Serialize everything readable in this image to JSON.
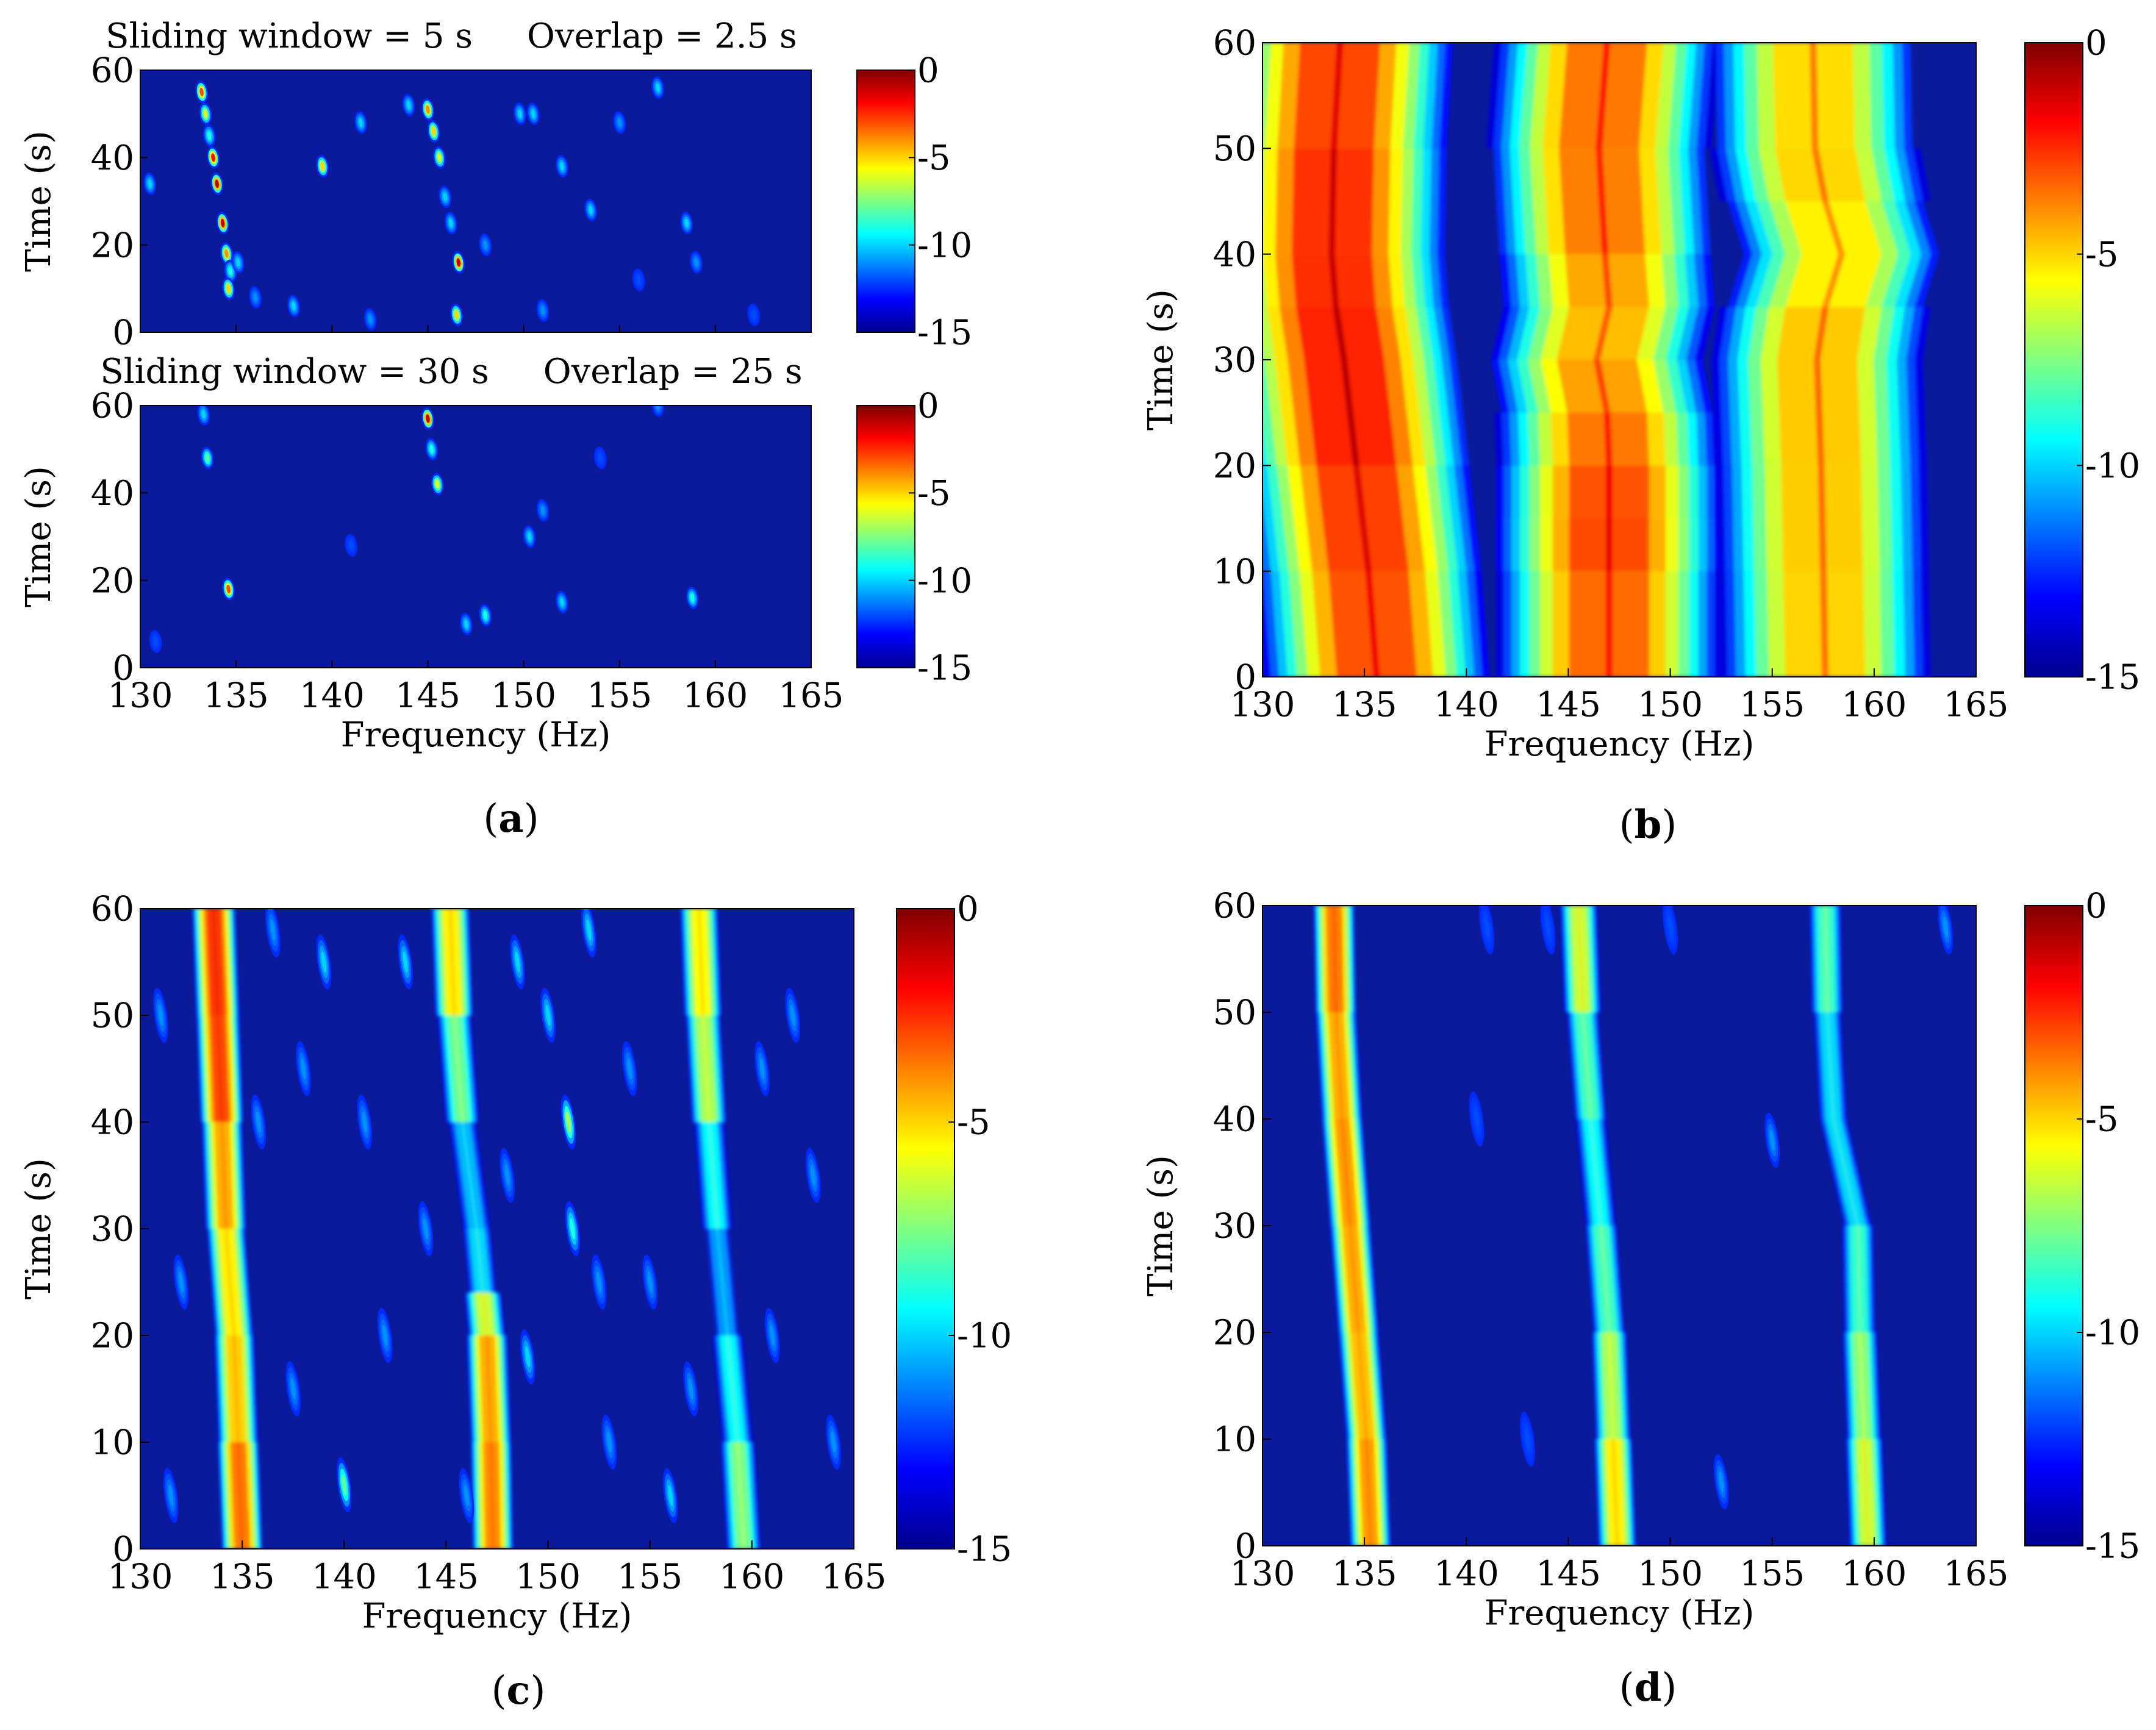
{
  "colorbar": {
    "stops": [
      "#00008f",
      "#0000ff",
      "#0080ff",
      "#00ffff",
      "#80ff80",
      "#ffff00",
      "#ff8000",
      "#ff0000",
      "#800000"
    ],
    "background": "#0a1a9a"
  },
  "panel_labels": [
    {
      "open": "(",
      "letter": "a",
      "close": ")"
    },
    {
      "open": "(",
      "letter": "b",
      "close": ")"
    },
    {
      "open": "(",
      "letter": "c",
      "close": ")"
    },
    {
      "open": "(",
      "letter": "d",
      "close": ")"
    }
  ],
  "chart_data": [
    {
      "id": "a-top",
      "type": "heatmap",
      "title": "Sliding window = 5 s     Overlap = 2.5 s",
      "xlabel": "",
      "ylabel": "Time (s)",
      "xlim": [
        130,
        165
      ],
      "ylim": [
        0,
        60
      ],
      "xticks": [],
      "yticks": [
        "0",
        "20",
        "40",
        "60"
      ],
      "clim": [
        -15,
        0
      ],
      "cticks": [
        "0",
        "-5",
        "-10",
        "-15"
      ],
      "ridges": [],
      "blobs": [
        [
          133.2,
          55,
          -3
        ],
        [
          133.4,
          50,
          -6
        ],
        [
          133.6,
          45,
          -9
        ],
        [
          133.8,
          40,
          -2
        ],
        [
          134.0,
          34,
          -1
        ],
        [
          134.3,
          25,
          -1
        ],
        [
          134.5,
          18,
          -4
        ],
        [
          134.7,
          14,
          -9
        ],
        [
          134.6,
          10,
          -5
        ],
        [
          135.1,
          16,
          -10
        ],
        [
          139.5,
          38,
          -5
        ],
        [
          141.5,
          48,
          -10
        ],
        [
          144.0,
          52,
          -10
        ],
        [
          145.0,
          51,
          -4
        ],
        [
          145.3,
          46,
          -5
        ],
        [
          145.6,
          40,
          -6
        ],
        [
          145.9,
          31,
          -10
        ],
        [
          146.2,
          25,
          -10
        ],
        [
          146.6,
          16,
          -1
        ],
        [
          146.5,
          4,
          -5
        ],
        [
          149.8,
          50,
          -10
        ],
        [
          150.5,
          50,
          -10
        ],
        [
          152.0,
          38,
          -10
        ],
        [
          153.5,
          28,
          -10
        ],
        [
          155.0,
          48,
          -11
        ],
        [
          157.0,
          56,
          -10
        ],
        [
          158.5,
          25,
          -10
        ],
        [
          159.0,
          16,
          -11
        ],
        [
          136.0,
          8,
          -11
        ],
        [
          138.0,
          6,
          -10
        ],
        [
          142.0,
          3,
          -11
        ],
        [
          151.0,
          5,
          -11
        ],
        [
          162.0,
          4,
          -12
        ],
        [
          130.5,
          34,
          -10
        ],
        [
          148.0,
          20,
          -11
        ],
        [
          156.0,
          12,
          -12
        ]
      ]
    },
    {
      "id": "a-bottom",
      "type": "heatmap",
      "title": "Sliding window = 30 s     Overlap = 25 s",
      "xlabel": "Frequency (Hz)",
      "ylabel": "Time (s)",
      "xlim": [
        130,
        165
      ],
      "ylim": [
        0,
        60
      ],
      "xticks": [
        "130",
        "135",
        "140",
        "145",
        "150",
        "155",
        "160",
        "165"
      ],
      "yticks": [
        "0",
        "20",
        "40",
        "60"
      ],
      "clim": [
        -15,
        0
      ],
      "cticks": [
        "0",
        "-5",
        "-10",
        "-15"
      ],
      "ridges": [],
      "blobs": [
        [
          133.3,
          58,
          -10
        ],
        [
          133.5,
          48,
          -8
        ],
        [
          134.6,
          18,
          -3
        ],
        [
          145.0,
          57,
          -1
        ],
        [
          145.2,
          50,
          -9
        ],
        [
          145.5,
          42,
          -6
        ],
        [
          147.0,
          10,
          -10
        ],
        [
          148.0,
          12,
          -9
        ],
        [
          150.3,
          30,
          -10
        ],
        [
          151.0,
          36,
          -11
        ],
        [
          152.0,
          15,
          -10
        ],
        [
          158.8,
          16,
          -9
        ],
        [
          157.0,
          60,
          -11
        ],
        [
          130.8,
          6,
          -12
        ],
        [
          141.0,
          28,
          -12
        ],
        [
          154.0,
          48,
          -12
        ]
      ]
    },
    {
      "id": "b",
      "type": "heatmap",
      "title": "",
      "xlabel": "Frequency (Hz)",
      "ylabel": "Time (s)",
      "xlim": [
        130,
        165
      ],
      "ylim": [
        0,
        60
      ],
      "xticks": [
        "130",
        "135",
        "140",
        "145",
        "150",
        "155",
        "160",
        "165"
      ],
      "yticks": [
        "0",
        "10",
        "20",
        "30",
        "40",
        "50",
        "60"
      ],
      "clim": [
        -15,
        0
      ],
      "cticks": [
        "0",
        "-5",
        "-10",
        "-15"
      ],
      "ridges": [
        {
          "sigma": 1.15,
          "pts": [
            [
              0,
              135.6,
              -1.8
            ],
            [
              10,
              135.2,
              -1.5
            ],
            [
              20,
              134.6,
              -1.2
            ],
            [
              30,
              134.0,
              -0.6
            ],
            [
              35,
              133.6,
              -1.2
            ],
            [
              40,
              133.4,
              -1.0
            ],
            [
              50,
              133.5,
              -1.3
            ],
            [
              60,
              133.8,
              -1.6
            ]
          ]
        },
        {
          "sigma": 1.15,
          "pts": [
            [
              0,
              147.0,
              -2.2
            ],
            [
              10,
              147.0,
              -1.8
            ],
            [
              15,
              147.0,
              -1.3
            ],
            [
              20,
              147.0,
              -2.0
            ],
            [
              25,
              146.9,
              -2.4
            ],
            [
              30,
              146.4,
              -3.2
            ],
            [
              35,
              147.0,
              -3.2
            ],
            [
              40,
              146.8,
              -2.6
            ],
            [
              50,
              146.5,
              -2.0
            ],
            [
              60,
              146.9,
              -2.4
            ]
          ]
        },
        {
          "sigma": 1.15,
          "pts": [
            [
              0,
              157.6,
              -3.8
            ],
            [
              10,
              157.5,
              -3.3
            ],
            [
              20,
              157.4,
              -3.6
            ],
            [
              30,
              157.2,
              -3.2
            ],
            [
              35,
              157.6,
              -3.6
            ],
            [
              40,
              158.4,
              -4.4
            ],
            [
              45,
              157.6,
              -3.6
            ],
            [
              50,
              157.1,
              -3.6
            ],
            [
              60,
              157.0,
              -3.8
            ]
          ]
        }
      ],
      "blobs": []
    },
    {
      "id": "c",
      "type": "heatmap",
      "title": "",
      "xlabel": "Frequency (Hz)",
      "ylabel": "Time (s)",
      "xlim": [
        130,
        165
      ],
      "ylim": [
        0,
        60
      ],
      "xticks": [
        "130",
        "135",
        "140",
        "145",
        "150",
        "155",
        "160",
        "165"
      ],
      "yticks": [
        "0",
        "10",
        "20",
        "30",
        "40",
        "50",
        "60"
      ],
      "clim": [
        -15,
        0
      ],
      "cticks": [
        "0",
        "-5",
        "-10",
        "-15"
      ],
      "ridges": [
        {
          "sigma": 0.22,
          "pts": [
            [
              0,
              135.0,
              -1.5
            ],
            [
              10,
              134.8,
              -3.0
            ],
            [
              20,
              134.6,
              -4.0
            ],
            [
              30,
              134.2,
              -4.0
            ],
            [
              40,
              134.0,
              -2.0
            ],
            [
              50,
              133.8,
              -1.0
            ],
            [
              60,
              133.6,
              -1.5
            ]
          ]
        },
        {
          "sigma": 0.22,
          "pts": [
            [
              0,
              147.3,
              -2.0
            ],
            [
              10,
              147.2,
              -3.0
            ],
            [
              20,
              147.0,
              -3.0
            ],
            [
              24,
              146.8,
              -7.0
            ],
            [
              30,
              146.5,
              -10.0
            ],
            [
              40,
              145.8,
              -8.0
            ],
            [
              50,
              145.4,
              -5.0
            ],
            [
              60,
              145.2,
              -3.0
            ]
          ]
        },
        {
          "sigma": 0.22,
          "pts": [
            [
              0,
              159.6,
              -5.5
            ],
            [
              10,
              159.3,
              -7.0
            ],
            [
              20,
              158.8,
              -9.0
            ],
            [
              30,
              158.3,
              -10.0
            ],
            [
              40,
              157.9,
              -6.0
            ],
            [
              50,
              157.6,
              -5.0
            ],
            [
              60,
              157.4,
              -3.5
            ]
          ]
        }
      ],
      "blobs": [
        [
          151.0,
          40,
          -7
        ],
        [
          151.2,
          30,
          -9
        ],
        [
          140.0,
          6,
          -8
        ],
        [
          149.0,
          18,
          -10
        ],
        [
          131.0,
          50,
          -11
        ],
        [
          132.0,
          25,
          -11
        ],
        [
          137.5,
          15,
          -11
        ],
        [
          138.0,
          45,
          -11
        ],
        [
          139.0,
          55,
          -10
        ],
        [
          141.0,
          40,
          -11
        ],
        [
          142.0,
          20,
          -11
        ],
        [
          143.0,
          55,
          -10
        ],
        [
          144.0,
          30,
          -11
        ],
        [
          148.5,
          55,
          -10
        ],
        [
          150.0,
          50,
          -10
        ],
        [
          152.0,
          58,
          -10
        ],
        [
          153.0,
          10,
          -11
        ],
        [
          154.0,
          45,
          -11
        ],
        [
          155.0,
          25,
          -11
        ],
        [
          156.0,
          5,
          -10
        ],
        [
          161.0,
          20,
          -11
        ],
        [
          162.0,
          50,
          -11
        ],
        [
          163.0,
          35,
          -11
        ],
        [
          164.0,
          10,
          -11
        ],
        [
          131.5,
          5,
          -11
        ],
        [
          136.5,
          58,
          -11
        ],
        [
          146.0,
          5,
          -11
        ],
        [
          152.5,
          25,
          -11
        ],
        [
          157.0,
          15,
          -11
        ],
        [
          160.5,
          45,
          -11
        ],
        [
          135.8,
          40,
          -11
        ],
        [
          148.0,
          35,
          -11
        ]
      ]
    },
    {
      "id": "d",
      "type": "heatmap",
      "title": "",
      "xlabel": "Frequency (Hz)",
      "ylabel": "Time (s)",
      "xlim": [
        130,
        165
      ],
      "ylim": [
        0,
        60
      ],
      "xticks": [
        "130",
        "135",
        "140",
        "145",
        "150",
        "155",
        "160",
        "165"
      ],
      "yticks": [
        "0",
        "10",
        "20",
        "30",
        "40",
        "50",
        "60"
      ],
      "clim": [
        -15,
        0
      ],
      "cticks": [
        "0",
        "-5",
        "-10",
        "-15"
      ],
      "ridges": [
        {
          "sigma": 0.22,
          "pts": [
            [
              0,
              135.3,
              -2.5
            ],
            [
              10,
              135.1,
              -3.0
            ],
            [
              20,
              134.7,
              -3.5
            ],
            [
              30,
              134.3,
              -2.5
            ],
            [
              40,
              133.9,
              -3.0
            ],
            [
              50,
              133.6,
              -3.0
            ],
            [
              60,
              133.5,
              -1.5
            ]
          ]
        },
        {
          "sigma": 0.22,
          "pts": [
            [
              0,
              147.4,
              -3.0
            ],
            [
              10,
              147.2,
              -5.0
            ],
            [
              20,
              147.0,
              -6.0
            ],
            [
              30,
              146.6,
              -8.0
            ],
            [
              40,
              146.1,
              -8.0
            ],
            [
              50,
              145.7,
              -6.0
            ],
            [
              60,
              145.5,
              -4.0
            ]
          ]
        },
        {
          "sigma": 0.22,
          "pts": [
            [
              0,
              159.7,
              -4.5
            ],
            [
              10,
              159.5,
              -5.5
            ],
            [
              20,
              159.3,
              -6.5
            ],
            [
              30,
              159.2,
              -8.0
            ],
            [
              40,
              158.0,
              -9.0
            ],
            [
              50,
              157.7,
              -8.0
            ],
            [
              60,
              157.6,
              -6.0
            ]
          ]
        }
      ],
      "blobs": [
        [
          140.5,
          40,
          -12
        ],
        [
          143.0,
          10,
          -12
        ],
        [
          152.5,
          6,
          -11
        ],
        [
          155.0,
          38,
          -11
        ],
        [
          141.0,
          58,
          -12
        ],
        [
          150.0,
          58,
          -12
        ],
        [
          163.5,
          58,
          -11
        ],
        [
          144.0,
          58,
          -12
        ]
      ]
    }
  ]
}
